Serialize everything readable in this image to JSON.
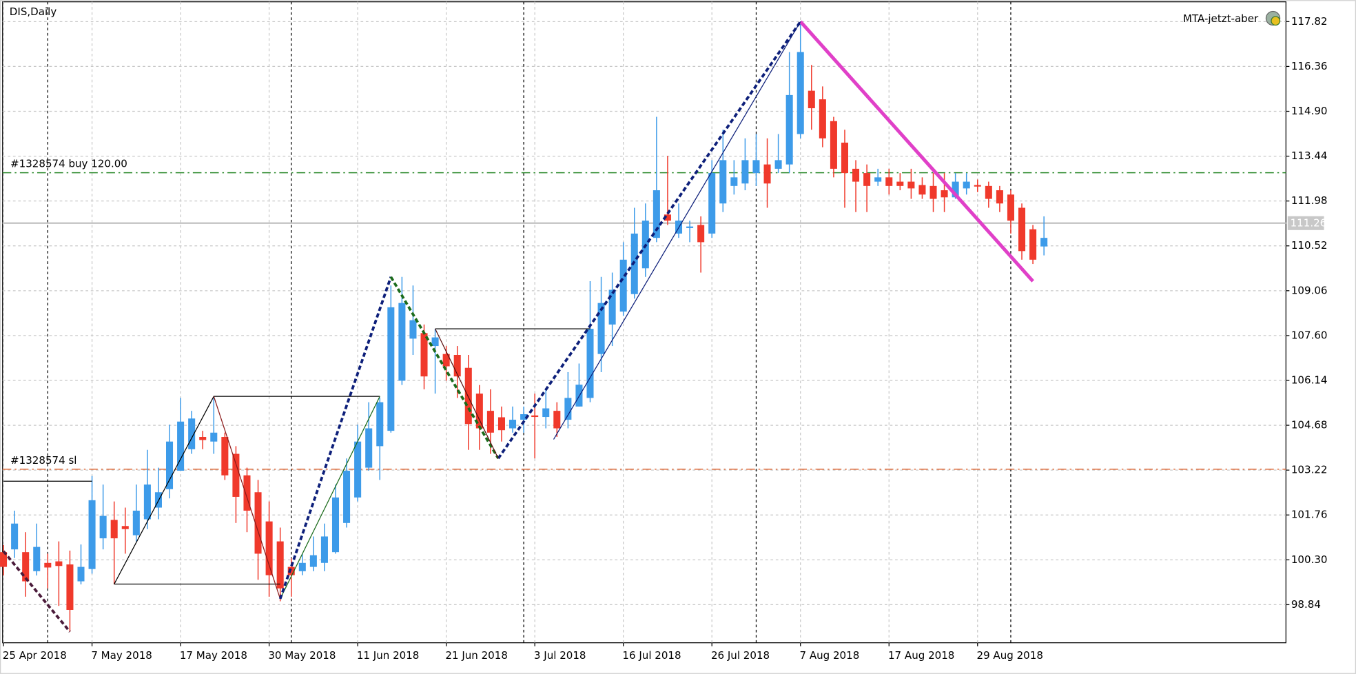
{
  "chart_data": {
    "type": "candlestick",
    "title": "DIS,Daily",
    "indicator_label": "MTA-jetzt-aber",
    "categories": [
      "25 Apr 2018",
      null,
      null,
      null,
      null,
      null,
      null,
      null,
      "7 May 2018",
      null,
      null,
      null,
      null,
      null,
      null,
      null,
      "17 May 2018",
      null,
      null,
      null,
      null,
      null,
      null,
      null,
      "30 May 2018",
      null,
      null,
      null,
      null,
      null,
      null,
      null,
      "11 Jun 2018",
      null,
      null,
      null,
      null,
      null,
      null,
      null,
      "21 Jun 2018",
      null,
      null,
      null,
      null,
      null,
      null,
      null,
      "3 Jul 2018",
      null,
      null,
      null,
      null,
      null,
      null,
      null,
      "16 Jul 2018",
      null,
      null,
      null,
      null,
      null,
      null,
      null,
      "26 Jul 2018",
      null,
      null,
      null,
      null,
      null,
      null,
      null,
      "7 Aug 2018",
      null,
      null,
      null,
      null,
      null,
      null,
      null,
      "17 Aug 2018",
      null,
      null,
      null,
      null,
      null,
      null,
      null,
      "29 Aug 2018",
      null,
      null,
      null,
      null,
      null,
      null
    ],
    "open": [
      100.55,
      100.64,
      100.55,
      99.93,
      100.2,
      100.25,
      100.15,
      99.6,
      100.0,
      101.0,
      101.6,
      101.4,
      101.1,
      101.62,
      102.0,
      102.6,
      103.2,
      103.9,
      104.3,
      104.15,
      104.3,
      103.75,
      103.05,
      102.5,
      101.55,
      100.9,
      100.07,
      99.93,
      100.07,
      100.2,
      100.55,
      101.5,
      102.33,
      103.3,
      104.0,
      104.5,
      106.13,
      107.5,
      107.68,
      107.26,
      107.0,
      106.97,
      106.55,
      105.71,
      105.15,
      104.94,
      104.58,
      104.86,
      105.0,
      104.95,
      105.15,
      104.86,
      105.29,
      105.57,
      107.0,
      107.96,
      108.38,
      108.95,
      109.79,
      110.78,
      111.54,
      110.92,
      111.1,
      111.2,
      110.92,
      111.9,
      112.47,
      112.55,
      112.89,
      113.17,
      113.03,
      113.17,
      114.16,
      115.57,
      115.29,
      114.58,
      113.88,
      113.03,
      112.89,
      112.61,
      112.75,
      112.61,
      112.61,
      112.5,
      112.47,
      112.33,
      112.1,
      112.39,
      112.5,
      112.47,
      112.33,
      112.19,
      111.76,
      111.06,
      110.5
    ],
    "high": [
      100.78,
      101.9,
      101.2,
      101.48,
      100.5,
      100.9,
      100.6,
      100.8,
      103.03,
      102.75,
      102.2,
      102.0,
      102.75,
      103.88,
      103.3,
      104.7,
      105.57,
      105.15,
      104.5,
      105.57,
      104.44,
      104.0,
      103.3,
      102.9,
      102.2,
      101.35,
      100.35,
      100.5,
      101.06,
      101.48,
      102.75,
      103.6,
      104.7,
      105.43,
      105.57,
      109.23,
      109.51,
      109.23,
      107.96,
      107.82,
      107.26,
      107.26,
      106.97,
      105.99,
      105.85,
      105.29,
      105.29,
      105.29,
      105.71,
      105.85,
      105.43,
      106.41,
      106.69,
      109.37,
      109.51,
      109.65,
      110.64,
      111.76,
      111.9,
      114.72,
      113.45,
      111.9,
      111.34,
      111.48,
      113.31,
      114.3,
      113.31,
      114.02,
      114.16,
      114.02,
      114.16,
      116.83,
      117.82,
      116.41,
      115.71,
      114.72,
      114.3,
      113.31,
      113.17,
      113.03,
      113.03,
      112.89,
      113.03,
      112.75,
      112.89,
      112.89,
      112.89,
      112.89,
      112.68,
      112.61,
      112.47,
      112.33,
      111.9,
      111.2,
      111.48
    ],
    "low": [
      99.79,
      100.36,
      99.1,
      99.79,
      99.37,
      98.8,
      97.96,
      99.5,
      99.85,
      100.64,
      99.5,
      100.5,
      100.9,
      101.3,
      101.62,
      102.3,
      103.2,
      103.75,
      103.9,
      103.75,
      102.9,
      101.5,
      101.2,
      99.65,
      99.1,
      98.95,
      99.1,
      99.8,
      99.93,
      99.93,
      100.5,
      101.35,
      102.2,
      103.2,
      102.9,
      104.44,
      105.99,
      106.97,
      105.85,
      105.71,
      106.13,
      105.57,
      103.88,
      103.88,
      103.75,
      104.15,
      104.44,
      104.44,
      103.6,
      104.58,
      104.3,
      104.58,
      105.29,
      105.43,
      106.41,
      107.26,
      108.24,
      108.8,
      109.51,
      110.64,
      111.2,
      110.78,
      110.64,
      109.65,
      110.78,
      111.62,
      112.19,
      112.33,
      112.47,
      111.76,
      112.89,
      112.89,
      114.02,
      114.3,
      113.73,
      112.75,
      111.76,
      111.62,
      111.62,
      112.47,
      112.19,
      112.33,
      112.05,
      112.05,
      111.62,
      111.62,
      112.05,
      112.19,
      112.27,
      111.76,
      111.62,
      110.92,
      110.07,
      109.93,
      110.21
    ],
    "close": [
      100.07,
      101.48,
      99.6,
      100.72,
      100.05,
      100.1,
      98.67,
      100.07,
      102.24,
      101.73,
      101.0,
      101.3,
      101.9,
      102.75,
      102.5,
      104.15,
      104.8,
      104.9,
      104.2,
      104.44,
      103.05,
      102.35,
      101.9,
      100.5,
      99.8,
      99.37,
      99.8,
      100.2,
      100.45,
      101.06,
      102.33,
      103.2,
      104.15,
      104.58,
      105.43,
      108.52,
      108.66,
      108.1,
      106.27,
      107.54,
      106.6,
      106.27,
      104.72,
      104.58,
      104.44,
      104.52,
      104.86,
      105.04,
      104.95,
      105.23,
      104.58,
      105.57,
      106.0,
      107.82,
      108.66,
      109.09,
      110.07,
      110.92,
      111.34,
      112.33,
      111.34,
      111.34,
      111.15,
      110.64,
      112.89,
      113.31,
      112.75,
      113.31,
      113.31,
      112.55,
      113.31,
      115.43,
      116.83,
      115.0,
      114.02,
      113.03,
      112.89,
      112.61,
      112.47,
      112.75,
      112.47,
      112.47,
      112.39,
      112.19,
      112.05,
      112.1,
      112.61,
      112.61,
      112.45,
      112.05,
      111.9,
      111.34,
      110.35,
      110.07,
      110.78
    ],
    "up_color": "#3d9be9",
    "down_color": "#f0392b",
    "xlim": [
      -0.08,
      115.86
    ],
    "ylim": [
      97.6,
      118.52
    ],
    "yticks": [
      98.84,
      {
        "value": 100.3,
        "label": "100.30"
      },
      101.76,
      103.22,
      104.68,
      106.14,
      {
        "value": 107.6,
        "label": "107.60"
      },
      109.06,
      110.52,
      111.98,
      113.44,
      {
        "value": 114.9,
        "label": "114.90"
      },
      116.36,
      117.82
    ],
    "grid": true,
    "current_price": 111.26,
    "order_lines": [
      {
        "label": "#1328574 buy 120.00",
        "price": 112.9,
        "color": "#2e8b2e"
      },
      {
        "label": "#1328574 sl",
        "price": 103.25,
        "color": "#e07040"
      }
    ],
    "separators": [
      4,
      26,
      47,
      68,
      91
    ],
    "drawings": [
      {
        "color": "#4a1a3a",
        "style": "dash-thick",
        "x": [
          0,
          6
        ],
        "y": [
          100.58,
          97.96
        ]
      },
      {
        "color": "#000000",
        "style": "thin",
        "x": [
          0,
          8
        ],
        "y": [
          102.86,
          102.86
        ]
      },
      {
        "color": "#000000",
        "style": "thin",
        "x": [
          10,
          19,
          34
        ],
        "y": [
          99.51,
          105.62,
          105.62
        ]
      },
      {
        "color": "#000000",
        "style": "thin",
        "x": [
          10,
          25
        ],
        "y": [
          99.51,
          99.51
        ]
      },
      {
        "color": "#8b1a1a",
        "style": "thin",
        "x": [
          19,
          25
        ],
        "y": [
          105.62,
          99.03
        ]
      },
      {
        "color": "#1b6b1b",
        "style": "thin",
        "x": [
          25,
          34
        ],
        "y": [
          99.03,
          105.62
        ]
      },
      {
        "color": "#0d1f7a",
        "style": "dash-thick",
        "x": [
          25,
          35
        ],
        "y": [
          99.03,
          109.51
        ]
      },
      {
        "color": "#1b6b1b",
        "style": "dash-thick",
        "x": [
          35,
          44.7
        ],
        "y": [
          109.51,
          103.6
        ]
      },
      {
        "color": "#0d1f7a",
        "style": "dash-thick",
        "x": [
          44.7,
          72
        ],
        "y": [
          103.6,
          117.82
        ]
      },
      {
        "color": "#e040c8",
        "style": "thick",
        "x": [
          72,
          93
        ],
        "y": [
          117.82,
          109.37
        ]
      },
      {
        "color": "#000000",
        "style": "thin",
        "x": [
          39,
          53
        ],
        "y": [
          107.82,
          107.82
        ]
      },
      {
        "color": "#5a1010",
        "style": "thin",
        "x": [
          39,
          44.7
        ],
        "y": [
          107.82,
          103.6
        ]
      },
      {
        "color": "#0d1f7a",
        "style": "thin",
        "x": [
          49.7,
          72
        ],
        "y": [
          104.22,
          117.82
        ]
      }
    ]
  }
}
